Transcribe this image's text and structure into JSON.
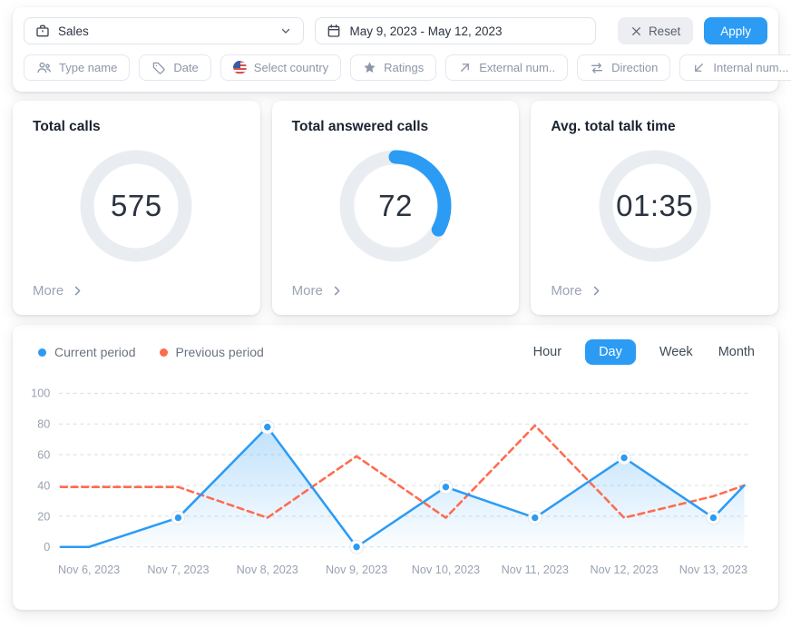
{
  "toolbar": {
    "team_select": {
      "value": "Sales",
      "icon": "briefcase-icon"
    },
    "date_range": {
      "value": "May 9, 2023 - May 12, 2023",
      "icon": "calendar-icon"
    },
    "reset_label": "Reset",
    "apply_label": "Apply"
  },
  "filters": [
    {
      "label": "Type name",
      "icon": "people-icon"
    },
    {
      "label": "Date",
      "icon": "tag-icon"
    },
    {
      "label": "Select country",
      "icon": "us-flag-icon"
    },
    {
      "label": "Ratings",
      "icon": "star-icon"
    },
    {
      "label": "External num..",
      "icon": "arrow-up-right-icon"
    },
    {
      "label": "Direction",
      "icon": "swap-arrows-icon"
    },
    {
      "label": "Internal num...",
      "icon": "arrow-down-left-icon"
    }
  ],
  "stat_cards": [
    {
      "title": "Total calls",
      "value": "575",
      "more_label": "More",
      "ring_progress": 0
    },
    {
      "title": "Total answered calls",
      "value": "72",
      "more_label": "More",
      "ring_progress": 0.33
    },
    {
      "title": "Avg. total talk time",
      "value": "01:35",
      "more_label": "More",
      "ring_progress": 0
    }
  ],
  "chart": {
    "legend": [
      {
        "label": "Current period",
        "color": "#2b9bf4"
      },
      {
        "label": "Previous period",
        "color": "#ff6b4e"
      }
    ],
    "tabs": [
      {
        "label": "Hour",
        "active": false
      },
      {
        "label": "Day",
        "active": true
      },
      {
        "label": "Week",
        "active": false
      },
      {
        "label": "Month",
        "active": false
      }
    ]
  },
  "chart_data": {
    "type": "line",
    "x": [
      "Nov 6, 2023",
      "Nov 7, 2023",
      "Nov 8, 2023",
      "Nov 9, 2023",
      "Nov 10, 2023",
      "Nov 11, 2023",
      "Nov 12, 2023",
      "Nov 13, 2023"
    ],
    "ylim": [
      0,
      100
    ],
    "yticks": [
      0,
      20,
      40,
      60,
      80,
      100
    ],
    "grid": "horizontal-dashed",
    "legend_position": "top-left",
    "series": [
      {
        "name": "Current period",
        "color": "#2b9bf4",
        "line_style": "solid",
        "area_fill": true,
        "values": [
          0,
          19,
          78,
          0,
          39,
          19,
          58,
          19
        ],
        "edge_start_value": 0,
        "edge_end_value": 40,
        "marker_indices": [
          1,
          2,
          3,
          4,
          5,
          6,
          7
        ]
      },
      {
        "name": "Previous period",
        "color": "#ff6b4e",
        "line_style": "dashed",
        "area_fill": false,
        "values": [
          39,
          39,
          19,
          59,
          19,
          79,
          19,
          33
        ],
        "edge_start_value": 39,
        "edge_end_value": 40,
        "marker_indices": []
      }
    ]
  },
  "colors": {
    "accent_blue": "#2b9bf4",
    "accent_red": "#ff6b4e",
    "ring_track": "#e9edf2",
    "grid_line": "#d8dde3",
    "muted_text": "#98a2b2"
  }
}
